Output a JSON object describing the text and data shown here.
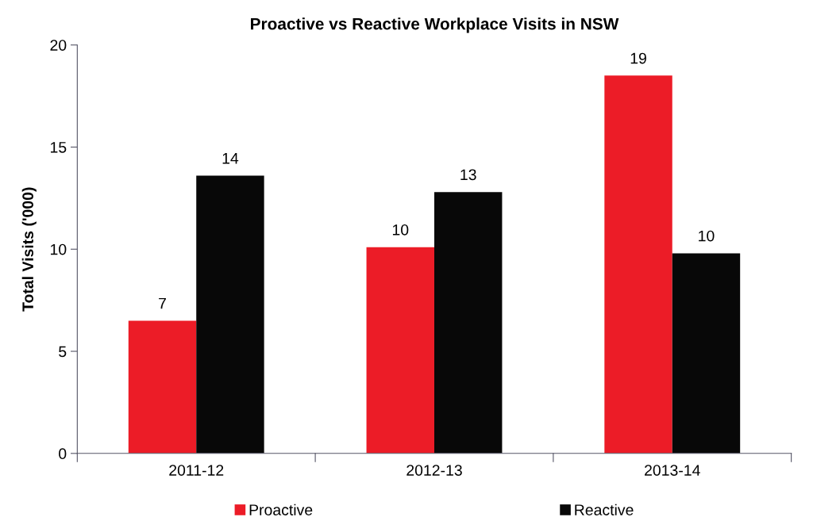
{
  "chart_data": {
    "type": "bar",
    "title": "Proactive vs Reactive Workplace Visits in NSW",
    "ylabel": "Total Visits ('000)",
    "categories": [
      "2011-12",
      "2012-13",
      "2013-14"
    ],
    "series": [
      {
        "name": "Proactive",
        "color": "#ec1c27",
        "values": [
          6.5,
          10.1,
          18.5
        ],
        "value_labels": [
          "7",
          "10",
          "19"
        ]
      },
      {
        "name": "Reactive",
        "color": "#080808",
        "values": [
          13.6,
          12.8,
          9.8
        ],
        "value_labels": [
          "14",
          "13",
          "10"
        ]
      }
    ],
    "ylim": [
      0,
      20
    ],
    "yticks": [
      0,
      5,
      10,
      15,
      20
    ],
    "grid": false,
    "legend": "bottom"
  }
}
